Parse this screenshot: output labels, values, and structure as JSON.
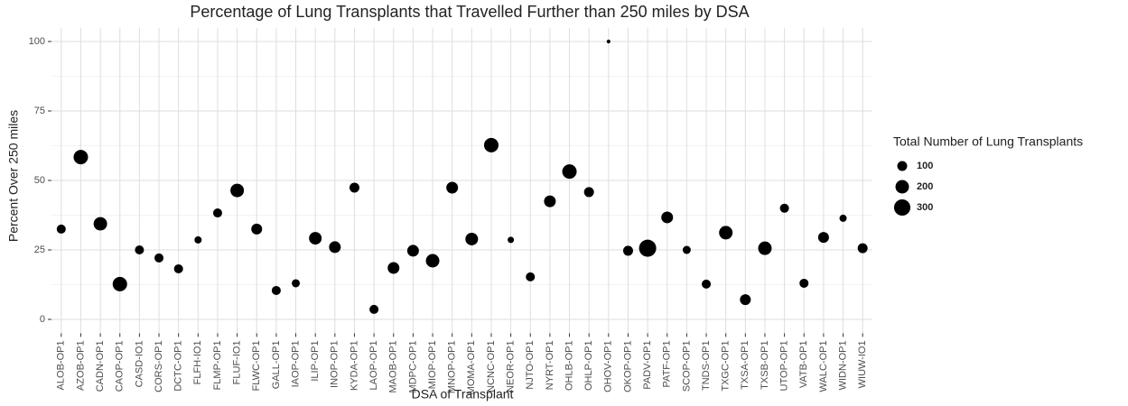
{
  "chart_data": {
    "type": "bubble",
    "title": "Percentage of Lung Transplants that Travelled Further than 250 miles by DSA",
    "x_label": "DSA of Transplant",
    "y_label": "Percent Over 250 miles",
    "categories": [
      "ALOB-OP1",
      "AZOB-OP1",
      "CADN-OP1",
      "CAOP-OP1",
      "CASD-IO1",
      "CORS-OP1",
      "DCTC-OP1",
      "FLFH-IO1",
      "FLMP-OP1",
      "FLUF-IO1",
      "FLWC-OP1",
      "GALL-OP1",
      "IAOP-OP1",
      "ILIP-OP1",
      "INOP-OP1",
      "KYDA-OP1",
      "LAOP-OP1",
      "MAOB-OP1",
      "MDPC-OP1",
      "MIOP-OP1",
      "MNOP-OP1",
      "MOMA-OP1",
      "NCNC-OP1",
      "NEOR-OP1",
      "NJTO-OP1",
      "NYRT-OP1",
      "OHLB-OP1",
      "OHLP-OP1",
      "OHOV-OP1",
      "OKOP-OP1",
      "PADV-OP1",
      "PATF-OP1",
      "SCOP-OP1",
      "TNDS-OP1",
      "TXGC-OP1",
      "TXSA-OP1",
      "TXSB-OP1",
      "UTOP-OP1",
      "VATB-OP1",
      "WALC-OP1",
      "WIDN-OP1",
      "WIUW-IO1"
    ],
    "values": [
      32.5,
      58.4,
      34.4,
      12.7,
      25,
      22.1,
      18.2,
      28.6,
      38.3,
      46.4,
      32.5,
      10.4,
      13,
      29.2,
      26,
      47.4,
      3.6,
      18.5,
      24.7,
      21.1,
      47.4,
      28.9,
      62.7,
      28.6,
      15.3,
      42.5,
      53.2,
      45.8,
      100,
      24.7,
      25.6,
      36.7,
      25,
      12.7,
      31.2,
      7.1,
      25.6,
      40,
      13,
      29.5,
      36.4,
      25.6
    ],
    "sizes": [
      81,
      231,
      200,
      231,
      81,
      81,
      81,
      46,
      81,
      200,
      123,
      81,
      62,
      173,
      147,
      101,
      81,
      147,
      147,
      200,
      147,
      173,
      231,
      32,
      81,
      147,
      231,
      101,
      1,
      101,
      332,
      147,
      62,
      81,
      200,
      123,
      200,
      81,
      81,
      123,
      46,
      101
    ],
    "color": "#000000",
    "ylim": [
      -5,
      105
    ],
    "yticks": [
      0,
      25,
      50,
      75,
      100
    ],
    "grid": true,
    "legend": {
      "title": "Total Number of Lung Transplants",
      "sizes": [
        100,
        200,
        300
      ]
    }
  }
}
